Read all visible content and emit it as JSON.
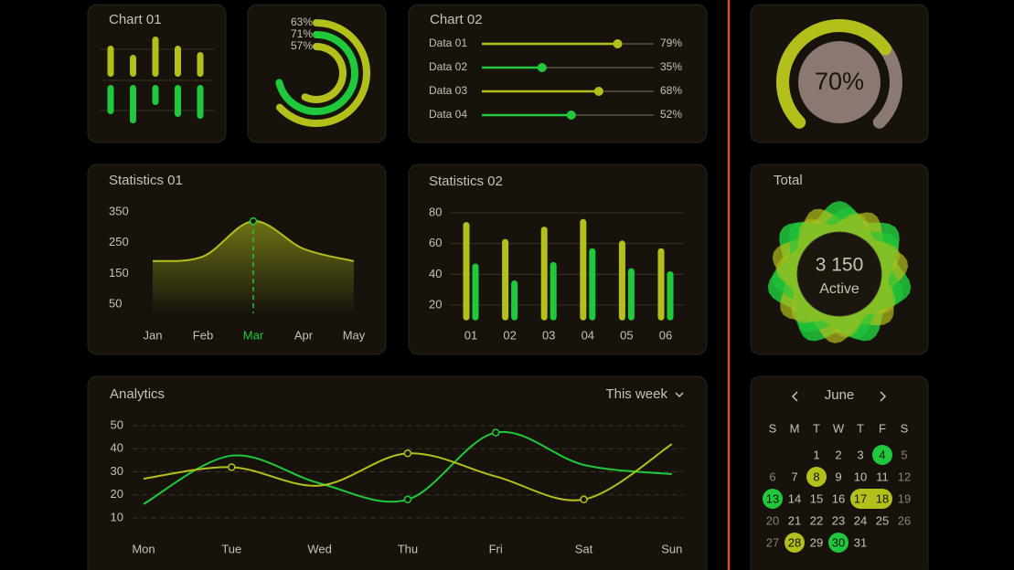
{
  "chart01": {
    "type": "bar",
    "title": "Chart 01",
    "series": [
      {
        "color": "#b3c01c",
        "values": [
          34,
          24,
          44,
          34,
          27
        ]
      },
      {
        "color": "#20c83c",
        "values": [
          32,
          42,
          22,
          35,
          37
        ]
      }
    ]
  },
  "radial": {
    "type": "radial",
    "values": [
      63,
      71,
      57
    ],
    "value_labels": [
      "63%",
      "71%",
      "57%"
    ],
    "colors": [
      "#b3c01c",
      "#20c83c",
      "#b3c01c"
    ]
  },
  "chart02": {
    "type": "slider",
    "title": "Chart 02",
    "categories": [
      "Data 01",
      "Data 02",
      "Data 03",
      "Data 04"
    ],
    "values": [
      79,
      35,
      68,
      52
    ],
    "value_labels": [
      "79%",
      "35%",
      "68%",
      "52%"
    ],
    "colors": [
      "#b3c01c",
      "#20c83c",
      "#b3c01c",
      "#20c83c"
    ],
    "xlim": [
      0,
      100
    ]
  },
  "gauge": {
    "type": "gauge",
    "value": 70,
    "value_label": "70%",
    "xlim": [
      0,
      100
    ],
    "color": "#b3c01c"
  },
  "statistics01": {
    "type": "area",
    "title": "Statistics 01",
    "categories": [
      "Jan",
      "Feb",
      "Mar",
      "Apr",
      "May"
    ],
    "values": [
      190,
      205,
      320,
      230,
      190
    ],
    "highlight": 2,
    "ylim": [
      20,
      390
    ],
    "yticks": [
      50,
      150,
      250,
      350
    ],
    "color": "#b3c01c"
  },
  "statistics02": {
    "type": "bar",
    "title": "Statistics 02",
    "categories": [
      "01",
      "02",
      "03",
      "04",
      "05",
      "06"
    ],
    "series": [
      {
        "color": "#b3c01c",
        "values": [
          74,
          63,
          71,
          76,
          62,
          57
        ]
      },
      {
        "color": "#20c83c",
        "values": [
          47,
          36,
          48,
          57,
          44,
          42
        ]
      }
    ],
    "ylim": [
      10,
      85
    ],
    "yticks": [
      20,
      40,
      60,
      80
    ],
    "grid": true
  },
  "total": {
    "title": "Total",
    "value": "3 150",
    "label": "Active"
  },
  "analytics": {
    "type": "line",
    "title": "Analytics",
    "period": "This week",
    "categories": [
      "Mon",
      "Tue",
      "Wed",
      "Thu",
      "Fri",
      "Sat",
      "Sun"
    ],
    "series": [
      {
        "color": "#20c83c",
        "values": [
          16,
          37,
          25,
          18,
          47,
          33,
          29
        ],
        "markers": [
          3,
          4
        ]
      },
      {
        "color": "#b3c01c",
        "values": [
          27,
          32,
          24,
          38,
          28,
          18,
          42
        ],
        "markers": [
          1,
          3,
          5
        ]
      }
    ],
    "ylim": [
      5,
      54
    ],
    "yticks": [
      10,
      20,
      30,
      40,
      50
    ],
    "grid": true
  },
  "calendar": {
    "month": "June",
    "weekdays": [
      "S",
      "M",
      "T",
      "W",
      "T",
      "F",
      "S"
    ],
    "first_weekday": 2,
    "days": [
      1,
      2,
      3,
      4,
      5,
      6,
      7,
      8,
      9,
      10,
      11,
      12,
      13,
      14,
      15,
      16,
      17,
      18,
      19,
      20,
      21,
      22,
      23,
      24,
      25,
      26,
      27,
      28,
      29,
      30,
      31
    ],
    "marked": [
      {
        "days": [
          4
        ],
        "color": "#20c83c"
      },
      {
        "days": [
          8
        ],
        "color": "#b3c01c"
      },
      {
        "days": [
          13
        ],
        "color": "#20c83c"
      },
      {
        "days": [
          17,
          18
        ],
        "color": "#b3c01c"
      },
      {
        "days": [
          28
        ],
        "color": "#b3c01c"
      },
      {
        "days": [
          30
        ],
        "color": "#20c83c"
      }
    ]
  }
}
